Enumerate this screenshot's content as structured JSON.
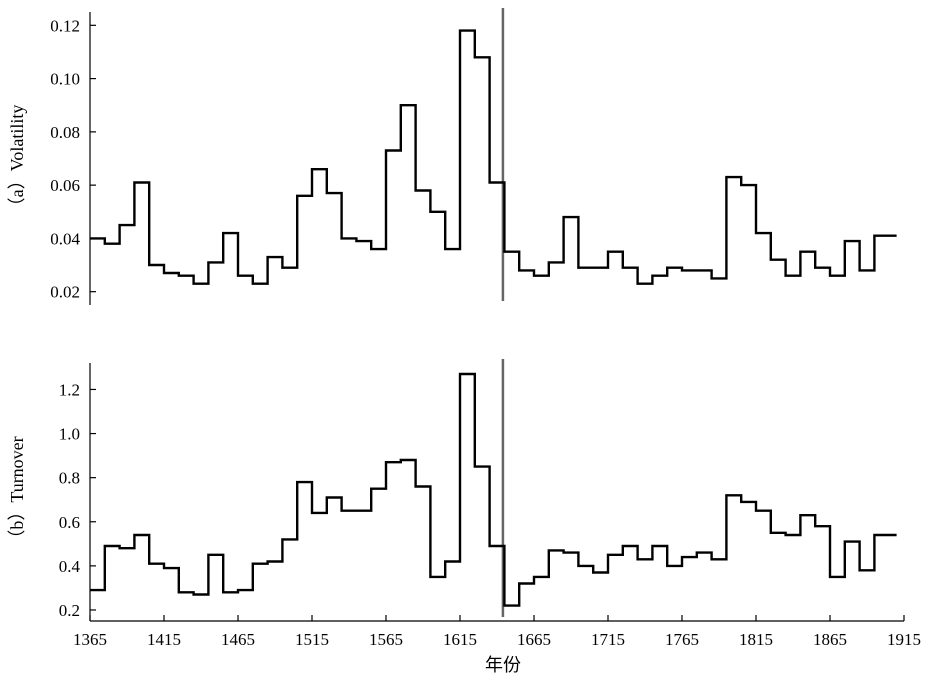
{
  "chart_data": [
    {
      "type": "line",
      "panel": "(a)",
      "ylabel": "（a）Volatility",
      "ylim": [
        0.015,
        0.125
      ],
      "yticks": [
        "0.02",
        "0.04",
        "0.06",
        "0.08",
        "0.10",
        "0.12"
      ],
      "xlim": [
        1365,
        1915
      ],
      "marker_x": 1644,
      "series": [
        {
          "steps": [
            [
              1365,
              0.04
            ],
            [
              1375,
              0.038
            ],
            [
              1385,
              0.045
            ],
            [
              1395,
              0.061
            ],
            [
              1405,
              0.03
            ],
            [
              1415,
              0.027
            ],
            [
              1425,
              0.026
            ],
            [
              1435,
              0.023
            ],
            [
              1445,
              0.031
            ],
            [
              1455,
              0.042
            ],
            [
              1465,
              0.026
            ],
            [
              1475,
              0.023
            ],
            [
              1485,
              0.033
            ],
            [
              1495,
              0.029
            ],
            [
              1505,
              0.056
            ],
            [
              1515,
              0.066
            ],
            [
              1525,
              0.057
            ],
            [
              1535,
              0.04
            ],
            [
              1545,
              0.039
            ],
            [
              1555,
              0.036
            ],
            [
              1565,
              0.073
            ],
            [
              1575,
              0.09
            ],
            [
              1585,
              0.058
            ],
            [
              1595,
              0.05
            ],
            [
              1605,
              0.036
            ],
            [
              1615,
              0.118
            ],
            [
              1625,
              0.108
            ],
            [
              1635,
              0.061
            ],
            [
              1645,
              0.035
            ],
            [
              1655,
              0.028
            ],
            [
              1665,
              0.026
            ],
            [
              1675,
              0.031
            ],
            [
              1685,
              0.048
            ],
            [
              1695,
              0.029
            ],
            [
              1705,
              0.029
            ],
            [
              1715,
              0.035
            ],
            [
              1725,
              0.029
            ],
            [
              1735,
              0.023
            ],
            [
              1745,
              0.026
            ],
            [
              1755,
              0.029
            ],
            [
              1765,
              0.028
            ],
            [
              1775,
              0.028
            ],
            [
              1785,
              0.025
            ],
            [
              1795,
              0.063
            ],
            [
              1805,
              0.06
            ],
            [
              1815,
              0.042
            ],
            [
              1825,
              0.032
            ],
            [
              1835,
              0.026
            ],
            [
              1845,
              0.035
            ],
            [
              1855,
              0.029
            ],
            [
              1865,
              0.026
            ],
            [
              1875,
              0.039
            ],
            [
              1885,
              0.028
            ],
            [
              1895,
              0.041
            ],
            [
              1910,
              0.041
            ]
          ]
        }
      ]
    },
    {
      "type": "line",
      "panel": "(b)",
      "ylabel": "（b）Turnover",
      "xlabel": "年份",
      "ylim": [
        0.15,
        1.32
      ],
      "yticks": [
        "0.2",
        "0.4",
        "0.6",
        "0.8",
        "1.0",
        "1.2"
      ],
      "xlim": [
        1365,
        1915
      ],
      "xticks": [
        "1365",
        "1415",
        "1465",
        "1515",
        "1565",
        "1615",
        "1665",
        "1715",
        "1765",
        "1815",
        "1865",
        "1915"
      ],
      "marker_x": 1644,
      "series": [
        {
          "steps": [
            [
              1365,
              0.29
            ],
            [
              1375,
              0.49
            ],
            [
              1385,
              0.48
            ],
            [
              1395,
              0.54
            ],
            [
              1405,
              0.41
            ],
            [
              1415,
              0.39
            ],
            [
              1425,
              0.28
            ],
            [
              1435,
              0.27
            ],
            [
              1445,
              0.45
            ],
            [
              1455,
              0.28
            ],
            [
              1465,
              0.29
            ],
            [
              1475,
              0.41
            ],
            [
              1485,
              0.42
            ],
            [
              1495,
              0.52
            ],
            [
              1505,
              0.78
            ],
            [
              1515,
              0.64
            ],
            [
              1525,
              0.71
            ],
            [
              1535,
              0.65
            ],
            [
              1545,
              0.65
            ],
            [
              1555,
              0.75
            ],
            [
              1565,
              0.87
            ],
            [
              1575,
              0.88
            ],
            [
              1585,
              0.76
            ],
            [
              1595,
              0.35
            ],
            [
              1605,
              0.42
            ],
            [
              1615,
              1.27
            ],
            [
              1625,
              0.85
            ],
            [
              1635,
              0.49
            ],
            [
              1645,
              0.22
            ],
            [
              1655,
              0.32
            ],
            [
              1665,
              0.35
            ],
            [
              1675,
              0.47
            ],
            [
              1685,
              0.46
            ],
            [
              1695,
              0.4
            ],
            [
              1705,
              0.37
            ],
            [
              1715,
              0.45
            ],
            [
              1725,
              0.49
            ],
            [
              1735,
              0.43
            ],
            [
              1745,
              0.49
            ],
            [
              1755,
              0.4
            ],
            [
              1765,
              0.44
            ],
            [
              1775,
              0.46
            ],
            [
              1785,
              0.43
            ],
            [
              1795,
              0.72
            ],
            [
              1805,
              0.69
            ],
            [
              1815,
              0.65
            ],
            [
              1825,
              0.55
            ],
            [
              1835,
              0.54
            ],
            [
              1845,
              0.63
            ],
            [
              1855,
              0.58
            ],
            [
              1865,
              0.35
            ],
            [
              1875,
              0.51
            ],
            [
              1885,
              0.38
            ],
            [
              1895,
              0.54
            ],
            [
              1910,
              0.54
            ]
          ]
        }
      ]
    }
  ]
}
